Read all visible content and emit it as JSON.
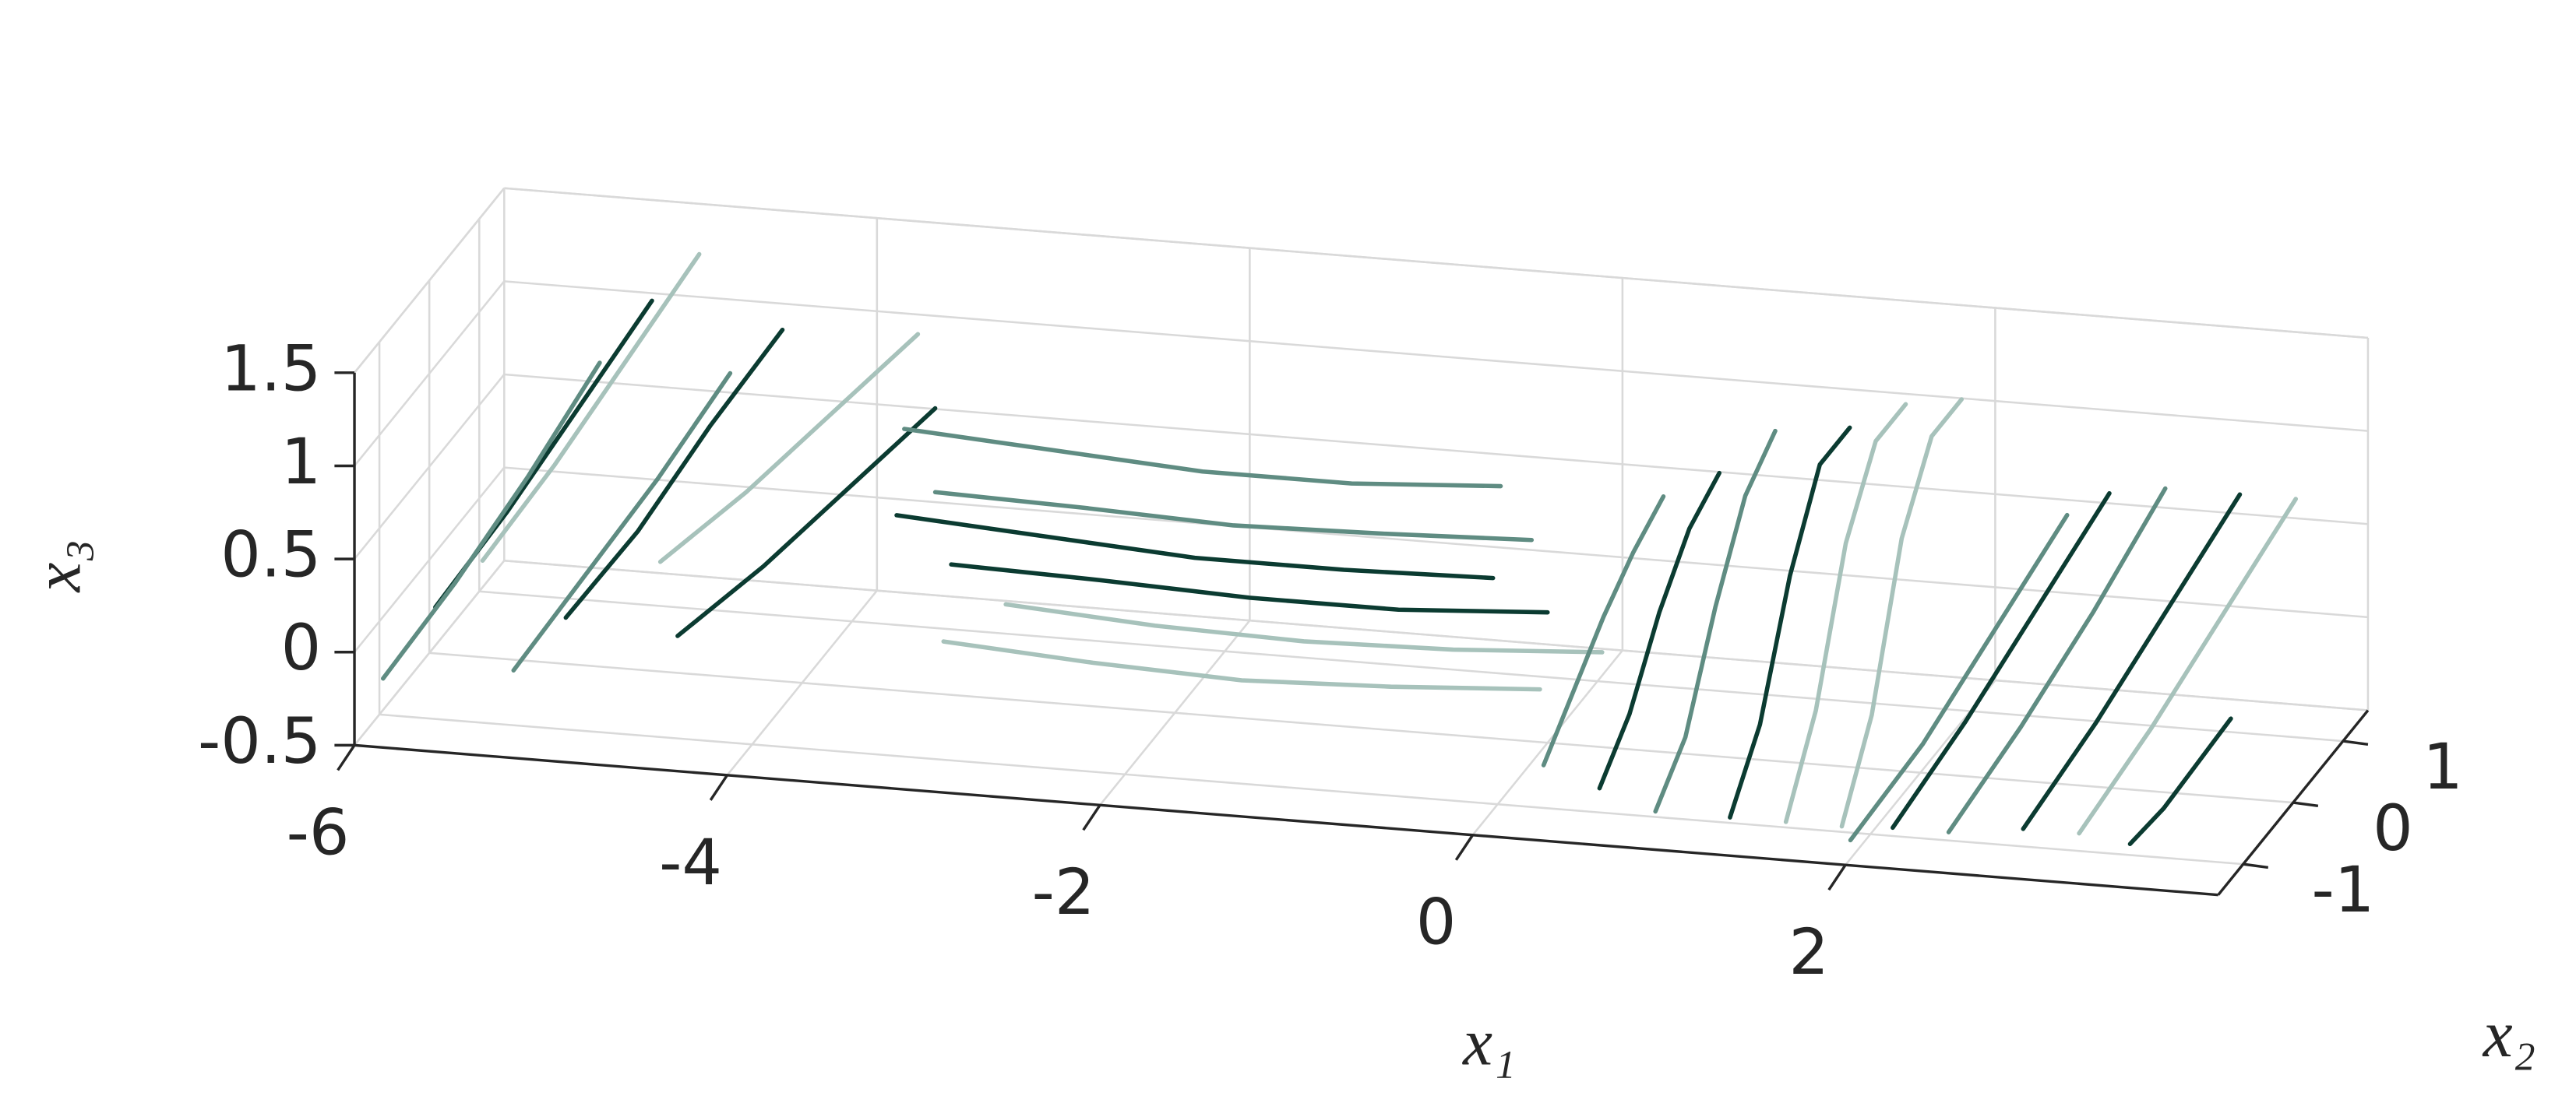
{
  "chart_data": {
    "type": "line3d",
    "xlabel": "x₁",
    "ylabel": "x₂",
    "zlabel": "x₃",
    "xlim": [
      -6,
      4
    ],
    "ylim": [
      -1.5,
      1.5
    ],
    "zlim": [
      -0.5,
      1.5
    ],
    "xticks": [
      -6,
      -4,
      -2,
      0,
      2
    ],
    "yticks": [
      -1,
      0,
      1
    ],
    "zticks": [
      -0.5,
      0,
      0.5,
      1,
      1.5
    ],
    "grid": true,
    "series": [
      {
        "color": "#0b3b31",
        "x": [
          -5.7,
          -5.5,
          -5.3,
          -5.1
        ],
        "y": [
          -1,
          -0.3,
          0.4,
          1.1
        ],
        "z": [
          0.1,
          0.4,
          0.75,
          1.1
        ]
      },
      {
        "color": "#5f8c82",
        "x": [
          -5.9,
          -5.7,
          -5.5,
          -5.3
        ],
        "y": [
          -1.3,
          -0.6,
          0.1,
          0.8
        ],
        "z": [
          -0.2,
          0.1,
          0.45,
          0.85
        ]
      },
      {
        "color": "#a7c2bb",
        "x": [
          -5.5,
          -5.3,
          -5.1,
          -4.9
        ],
        "y": [
          -0.8,
          -0.1,
          0.6,
          1.3
        ],
        "z": [
          0.3,
          0.6,
          0.95,
          1.3
        ]
      },
      {
        "color": "#0b3b31",
        "x": [
          -5.0,
          -4.8,
          -4.6,
          -4.4
        ],
        "y": [
          -1,
          -0.3,
          0.4,
          1.1
        ],
        "z": [
          0.1,
          0.35,
          0.7,
          1.0
        ]
      },
      {
        "color": "#5f8c82",
        "x": [
          -5.2,
          -5.0,
          -4.8,
          -4.6
        ],
        "y": [
          -1.3,
          -0.6,
          0.1,
          0.8
        ],
        "z": [
          -0.1,
          0.2,
          0.5,
          0.85
        ]
      },
      {
        "color": "#0b3b31",
        "x": [
          -4.4,
          -4.1,
          -3.8,
          -3.5
        ],
        "y": [
          -1,
          -0.4,
          0.2,
          0.8
        ],
        "z": [
          0.05,
          0.25,
          0.5,
          0.75
        ]
      },
      {
        "color": "#a7c2bb",
        "x": [
          -4.6,
          -4.3,
          -4.0,
          -3.7
        ],
        "y": [
          -0.6,
          0,
          0.6,
          1.2
        ],
        "z": [
          0.3,
          0.5,
          0.75,
          1.0
        ]
      },
      {
        "color": "#0b3b31",
        "x": [
          -3.2,
          -2.4,
          -1.6,
          -0.8,
          0
        ],
        "y": [
          0,
          0,
          0,
          0,
          0
        ],
        "z": [
          0.2,
          0.18,
          0.15,
          0.15,
          0.2
        ]
      },
      {
        "color": "#5f8c82",
        "x": [
          -3.5,
          -2.7,
          -1.9,
          -1.1,
          -0.3
        ],
        "y": [
          0.8,
          0.8,
          0.8,
          0.8,
          0.8
        ],
        "z": [
          0.3,
          0.28,
          0.25,
          0.27,
          0.3
        ]
      },
      {
        "color": "#a7c2bb",
        "x": [
          -3.0,
          -2.2,
          -1.4,
          -0.6,
          0.2
        ],
        "y": [
          -0.9,
          -0.9,
          -0.9,
          -0.9,
          -0.9
        ],
        "z": [
          0.1,
          0.05,
          0.02,
          0.05,
          0.1
        ]
      },
      {
        "color": "#5f8c82",
        "x": [
          -3.8,
          -3,
          -2.2,
          -1.4,
          -0.6
        ],
        "y": [
          1.3,
          1.3,
          1.3,
          1.3,
          1.3
        ],
        "z": [
          0.45,
          0.4,
          0.35,
          0.35,
          0.4
        ]
      },
      {
        "color": "#a7c2bb",
        "x": [
          -2.8,
          -2,
          -1.2,
          -0.4,
          0.4
        ],
        "y": [
          -0.4,
          -0.4,
          -0.4,
          -0.4,
          -0.4
        ],
        "z": [
          0.15,
          0.1,
          0.08,
          0.1,
          0.15
        ]
      },
      {
        "color": "#0b3b31",
        "x": [
          -3.6,
          -2.8,
          -2,
          -1.2,
          -0.4
        ],
        "y": [
          0.4,
          0.4,
          0.4,
          0.4,
          0.4
        ],
        "z": [
          0.3,
          0.25,
          0.2,
          0.2,
          0.22
        ]
      },
      {
        "color": "#0b3b31",
        "x": [
          0.6,
          0.6,
          0.6,
          0.6,
          0.6
        ],
        "y": [
          -1.2,
          -0.6,
          0,
          0.6,
          1.2
        ],
        "z": [
          -0.3,
          -0.1,
          0.25,
          0.5,
          0.6
        ]
      },
      {
        "color": "#5f8c82",
        "x": [
          0.9,
          0.9,
          0.9,
          0.9,
          0.9
        ],
        "y": [
          -1.2,
          -0.6,
          0,
          0.6,
          1.2
        ],
        "z": [
          -0.4,
          -0.2,
          0.3,
          0.7,
          0.85
        ]
      },
      {
        "color": "#0b3b31",
        "x": [
          1.3,
          1.3,
          1.3,
          1.3,
          1.3
        ],
        "y": [
          -1.2,
          -0.6,
          0,
          0.6,
          1.2
        ],
        "z": [
          -0.4,
          -0.1,
          0.5,
          0.9,
          0.9
        ]
      },
      {
        "color": "#a7c2bb",
        "x": [
          1.6,
          1.6,
          1.6,
          1.6,
          1.6
        ],
        "y": [
          -1.2,
          -0.6,
          0,
          0.6,
          1.2
        ],
        "z": [
          -0.4,
          0,
          0.7,
          1.05,
          1.05
        ]
      },
      {
        "color": "#5f8c82",
        "x": [
          0.3,
          0.3,
          0.3,
          0.3,
          0.3
        ],
        "y": [
          -1.2,
          -0.6,
          0,
          0.6,
          1.2
        ],
        "z": [
          -0.2,
          0,
          0.2,
          0.35,
          0.45
        ]
      },
      {
        "color": "#a7c2bb",
        "x": [
          1.9,
          1.9,
          1.9,
          1.9,
          1.9
        ],
        "y": [
          -1.2,
          -0.6,
          0,
          0.6,
          1.2
        ],
        "z": [
          -0.4,
          0,
          0.75,
          1.1,
          1.1
        ]
      },
      {
        "color": "#0b3b31",
        "x": [
          2.2,
          2.4,
          2.6,
          2.8
        ],
        "y": [
          -1.3,
          -0.6,
          0.1,
          0.8
        ],
        "z": [
          -0.35,
          0.0,
          0.4,
          0.8
        ]
      },
      {
        "color": "#5f8c82",
        "x": [
          2.5,
          2.7,
          2.9,
          3.1
        ],
        "y": [
          -1.3,
          -0.6,
          0.1,
          0.8
        ],
        "z": [
          -0.35,
          0,
          0.4,
          0.85
        ]
      },
      {
        "color": "#0b3b31",
        "x": [
          2.9,
          3.1,
          3.3,
          3.5
        ],
        "y": [
          -1.3,
          -0.6,
          0.1,
          0.8
        ],
        "z": [
          -0.3,
          0.05,
          0.45,
          0.85
        ]
      },
      {
        "color": "#a7c2bb",
        "x": [
          3.2,
          3.4,
          3.6,
          3.8
        ],
        "y": [
          -1.3,
          -0.6,
          0.1,
          0.8
        ],
        "z": [
          -0.3,
          0.05,
          0.45,
          0.85
        ]
      },
      {
        "color": "#0b3b31",
        "x": [
          3.5,
          3.6,
          3.7,
          3.8
        ],
        "y": [
          -1.4,
          -1.1,
          -0.8,
          -0.5
        ],
        "z": [
          -0.3,
          -0.2,
          -0.05,
          0.1
        ]
      },
      {
        "color": "#5f8c82",
        "x": [
          2.0,
          2.2,
          2.4,
          2.6
        ],
        "y": [
          -1.4,
          -0.7,
          0,
          0.7
        ],
        "z": [
          -0.4,
          -0.1,
          0.3,
          0.7
        ]
      }
    ]
  }
}
